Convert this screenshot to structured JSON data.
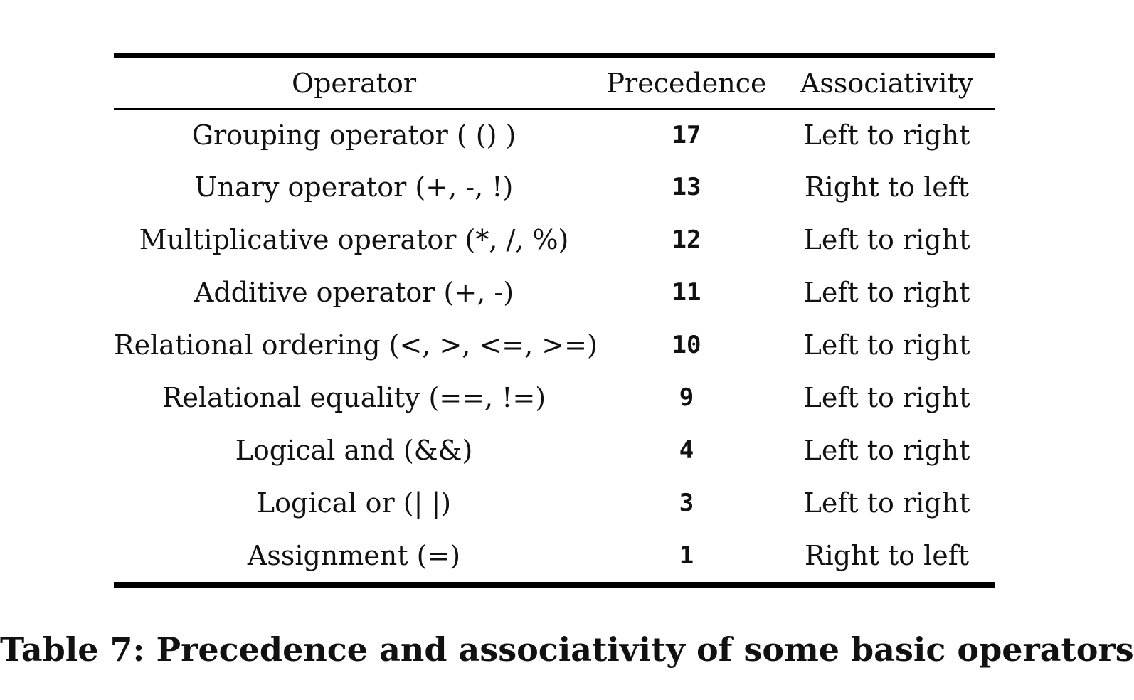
{
  "table": {
    "headers": {
      "operator": "Operator",
      "precedence": "Precedence",
      "associativity": "Associativity"
    },
    "rows": [
      {
        "operator": "Grouping operator ( () )",
        "precedence": "17",
        "associativity": "Left to right"
      },
      {
        "operator": "Unary operator (+, -, !)",
        "precedence": "13",
        "associativity": "Right to left"
      },
      {
        "operator": "Multiplicative operator (*, /, %)",
        "precedence": "12",
        "associativity": "Left to right"
      },
      {
        "operator": "Additive operator (+, -)",
        "precedence": "11",
        "associativity": "Left to right"
      },
      {
        "operator": "Relational ordering (<, >, <=, >=)",
        "precedence": "10",
        "associativity": "Left to right"
      },
      {
        "operator": "Relational equality (==, !=)",
        "precedence": "9",
        "associativity": "Left to right"
      },
      {
        "operator": "Logical and (&&)",
        "precedence": "4",
        "associativity": "Left to right"
      },
      {
        "operator": "Logical or (| |)",
        "precedence": "3",
        "associativity": "Left to right"
      },
      {
        "operator": "Assignment (=)",
        "precedence": "1",
        "associativity": "Right to left"
      }
    ]
  },
  "caption": "Table 7: Precedence and associativity of some basic operators"
}
